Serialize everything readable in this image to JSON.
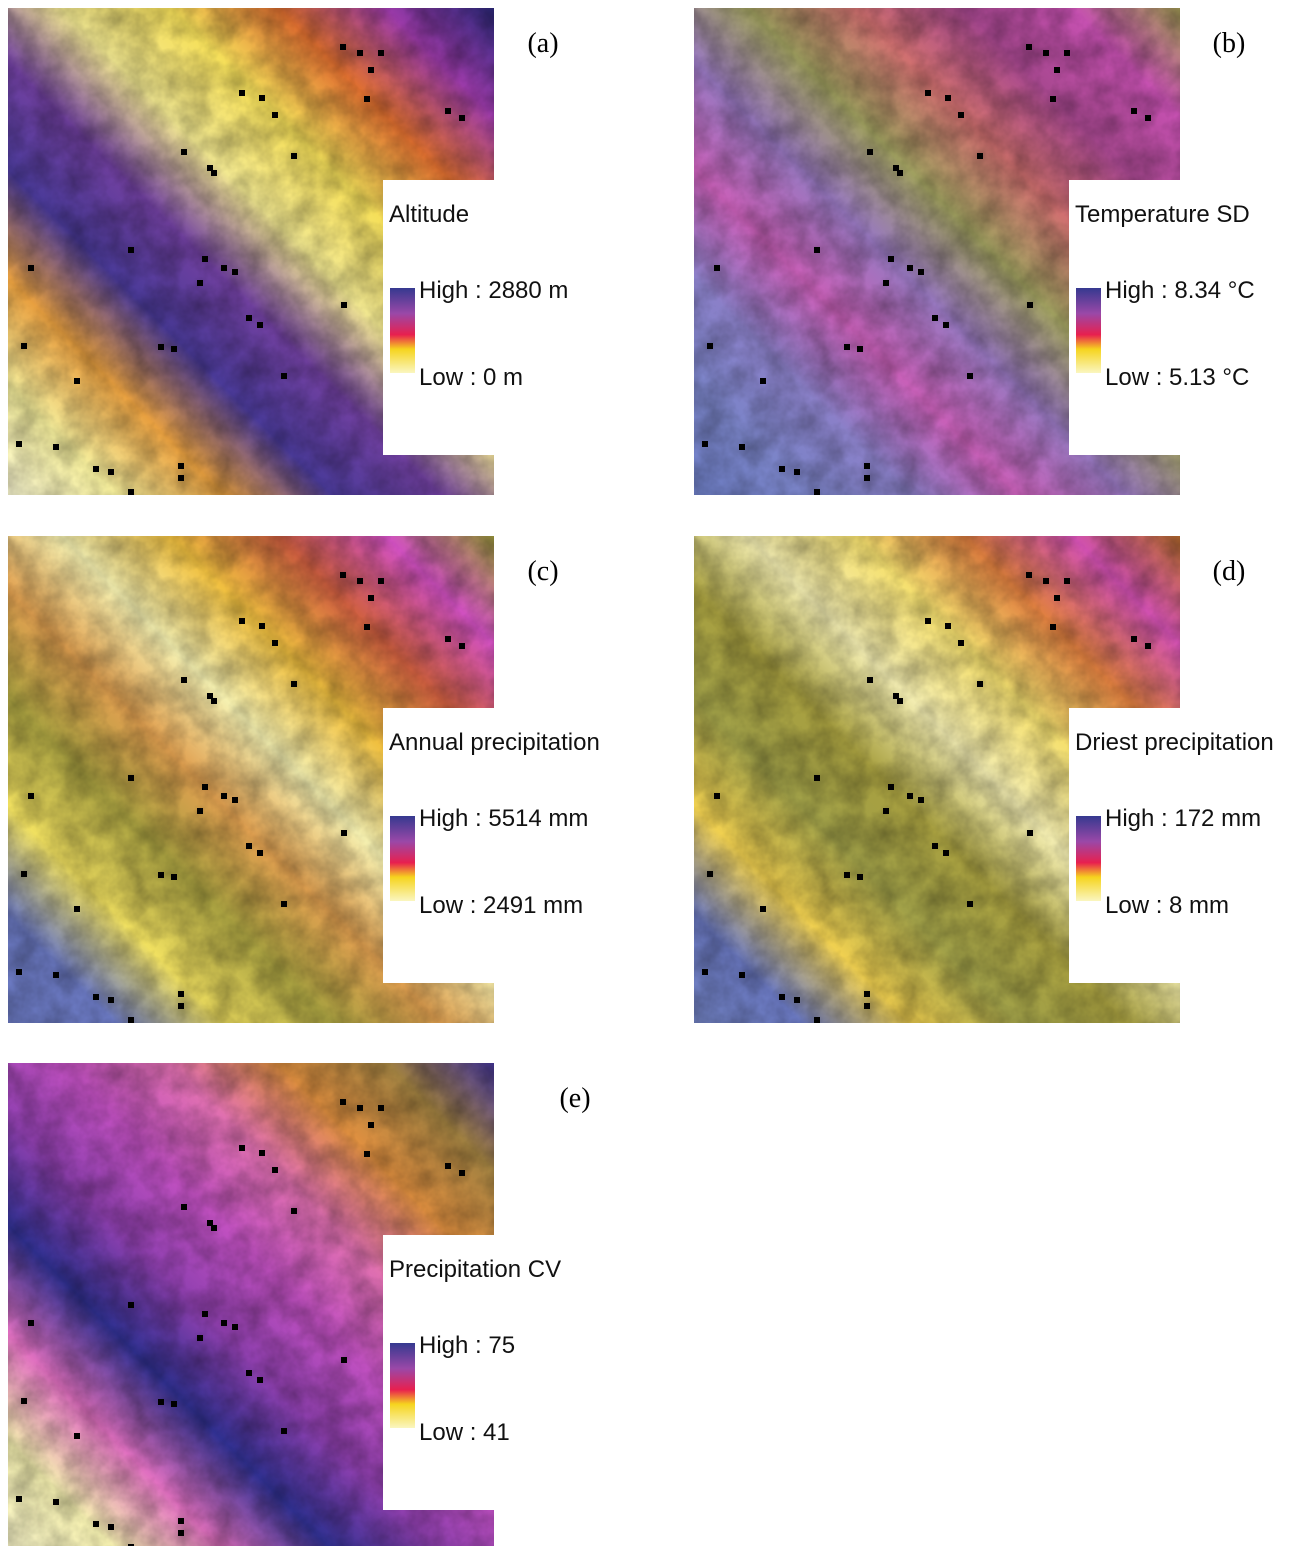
{
  "panels": [
    {
      "label": "(a)",
      "legend_title": "Altitude",
      "high": "High : 2880 m",
      "low": "Low : 0 m"
    },
    {
      "label": "(b)",
      "legend_title": "Temperature SD",
      "high": "High : 8.34 °C",
      "low": "Low : 5.13 °C"
    },
    {
      "label": "(c)",
      "legend_title": "Annual precipitation",
      "high": "High : 5514 mm",
      "low": "Low : 2491 mm"
    },
    {
      "label": "(d)",
      "legend_title": "Driest precipitation",
      "high": "High : 172 mm",
      "low": "Low : 8 mm"
    },
    {
      "label": "(e)",
      "legend_title": "Precipitation CV",
      "high": "High : 75",
      "low": "Low : 41"
    }
  ]
}
